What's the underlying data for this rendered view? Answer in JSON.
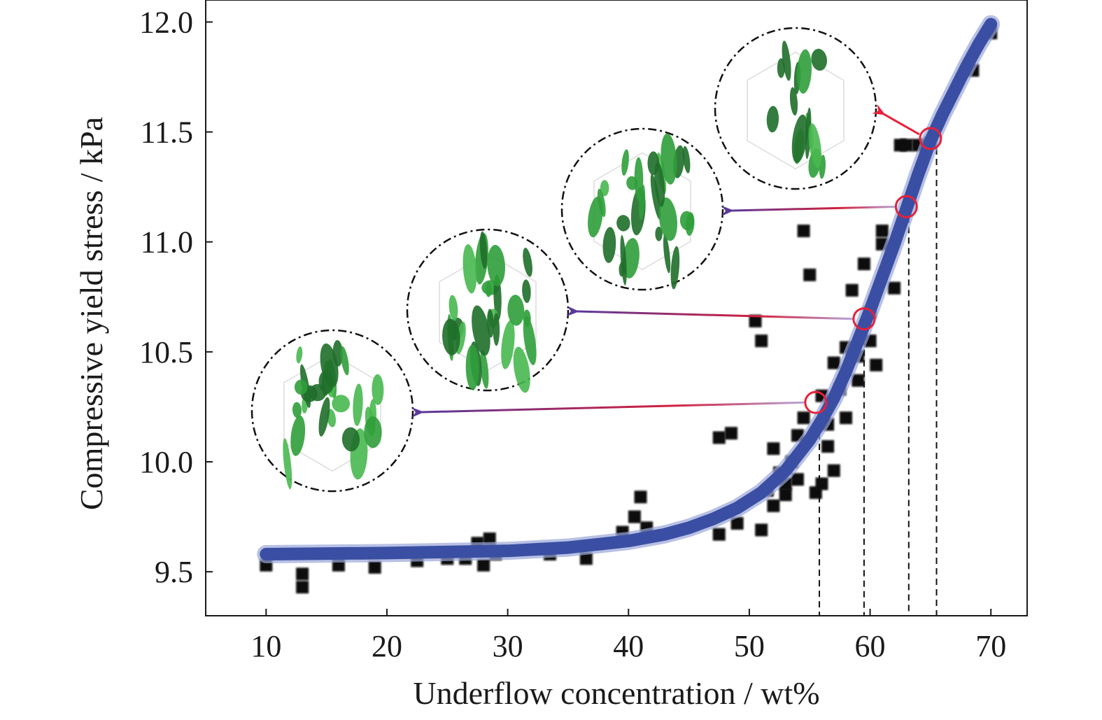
{
  "chart_data": {
    "type": "scatter",
    "title": "",
    "xlabel": "Underflow concentration / wt%",
    "ylabel": "Compressive yield stress / kPa",
    "xlim": [
      5,
      73
    ],
    "ylim": [
      9.3,
      12.1
    ],
    "xticks": [
      10,
      20,
      30,
      40,
      50,
      60,
      70
    ],
    "yticks": [
      9.5,
      10.0,
      10.5,
      11.0,
      11.5,
      12.0
    ],
    "xtick_labels": [
      "10",
      "20",
      "30",
      "40",
      "50",
      "60",
      "70"
    ],
    "ytick_labels": [
      "9.5",
      "10.0",
      "10.5",
      "11.0",
      "11.5",
      "12.0"
    ],
    "grid": false,
    "scatter_points": [
      [
        10,
        9.53
      ],
      [
        13,
        9.49
      ],
      [
        13,
        9.43
      ],
      [
        16,
        9.53
      ],
      [
        19,
        9.52
      ],
      [
        22.5,
        9.55
      ],
      [
        25,
        9.56
      ],
      [
        26.5,
        9.56
      ],
      [
        27.5,
        9.63
      ],
      [
        28,
        9.53
      ],
      [
        28.5,
        9.65
      ],
      [
        29,
        9.58
      ],
      [
        33.5,
        9.58
      ],
      [
        36.5,
        9.56
      ],
      [
        39.5,
        9.68
      ],
      [
        40.5,
        9.75
      ],
      [
        41,
        9.84
      ],
      [
        41.5,
        9.7
      ],
      [
        47.5,
        10.11
      ],
      [
        48.5,
        10.13
      ],
      [
        49,
        9.72
      ],
      [
        47.5,
        9.67
      ],
      [
        50.5,
        10.64
      ],
      [
        51,
        10.55
      ],
      [
        51,
        9.69
      ],
      [
        51.5,
        9.87
      ],
      [
        52,
        9.8
      ],
      [
        52,
        10.06
      ],
      [
        52.5,
        9.95
      ],
      [
        53,
        9.9
      ],
      [
        53,
        9.85
      ],
      [
        53.5,
        10.0
      ],
      [
        54,
        9.92
      ],
      [
        54,
        10.12
      ],
      [
        54.5,
        10.2
      ],
      [
        54.5,
        11.05
      ],
      [
        55,
        10.85
      ],
      [
        55.5,
        9.86
      ],
      [
        56,
        9.9
      ],
      [
        56,
        10.3
      ],
      [
        56.5,
        10.07
      ],
      [
        56.5,
        10.17
      ],
      [
        57,
        9.96
      ],
      [
        57,
        10.45
      ],
      [
        57.5,
        10.33
      ],
      [
        58,
        10.2
      ],
      [
        58,
        10.52
      ],
      [
        58.5,
        10.78
      ],
      [
        59,
        10.48
      ],
      [
        59,
        10.37
      ],
      [
        59.5,
        10.9
      ],
      [
        60,
        10.55
      ],
      [
        60,
        10.68
      ],
      [
        60.5,
        10.44
      ],
      [
        61,
        10.99
      ],
      [
        61,
        11.05
      ],
      [
        62,
        10.79
      ],
      [
        62.5,
        11.44
      ],
      [
        63,
        11.44
      ],
      [
        64,
        11.44
      ],
      [
        65,
        11.45
      ],
      [
        68.5,
        11.78
      ],
      [
        70,
        11.95
      ]
    ],
    "series": [
      {
        "type": "line",
        "color": "#3a4fa3",
        "x": [
          10,
          20,
          30,
          35,
          40,
          43,
          45,
          47,
          49,
          51,
          53,
          55,
          56,
          57,
          58,
          59,
          60,
          61,
          62,
          63,
          64,
          65,
          66,
          67,
          68,
          69,
          70
        ],
        "y": [
          9.58,
          9.585,
          9.595,
          9.61,
          9.64,
          9.67,
          9.7,
          9.74,
          9.79,
          9.86,
          9.96,
          10.1,
          10.19,
          10.29,
          10.41,
          10.55,
          10.69,
          10.84,
          10.99,
          11.15,
          11.31,
          11.46,
          11.58,
          11.69,
          11.8,
          11.9,
          11.99
        ]
      }
    ],
    "highlighted_points": [
      {
        "x": 55.5,
        "y": 10.27,
        "insetCenter": [
          475,
          587
        ]
      },
      {
        "x": 59.5,
        "y": 10.65,
        "insetCenter": [
          697,
          443
        ]
      },
      {
        "x": 63.0,
        "y": 11.16,
        "insetCenter": [
          918,
          299
        ]
      },
      {
        "x": 65.0,
        "y": 11.47,
        "insetCenter": [
          1137,
          155
        ]
      }
    ],
    "reference_lines_x": [
      55.8,
      59.5,
      63.2,
      65.5
    ],
    "colors": {
      "fit_line": "#3a4fa3",
      "points": "#111111",
      "highlight_circle": "#e8203a",
      "arrow_start": "#d21f3c",
      "arrow_end": "#6a3fa0",
      "microstructure_green": "#2f9e3a"
    }
  }
}
